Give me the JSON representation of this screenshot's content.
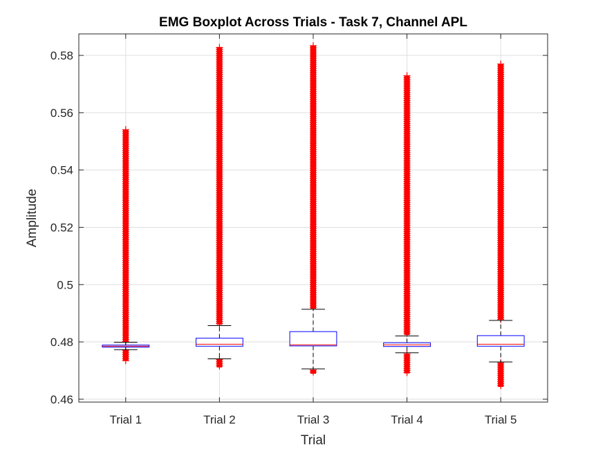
{
  "chart_data": {
    "type": "box",
    "title": "EMG Boxplot Across Trials - Task 7, Channel APL",
    "xlabel": "Trial",
    "ylabel": "Amplitude",
    "ylim": [
      0.459,
      0.5875
    ],
    "yticks": [
      "0.46",
      "0.48",
      "0.5",
      "0.52",
      "0.54",
      "0.56",
      "0.58"
    ],
    "ytick_values": [
      0.46,
      0.48,
      0.5,
      0.52,
      0.54,
      0.56,
      0.58
    ],
    "grid": true,
    "categories": [
      "Trial 1",
      "Trial 2",
      "Trial 3",
      "Trial 4",
      "Trial 5"
    ],
    "boxes": [
      {
        "name": "Trial 1",
        "whisker_low": 0.4773,
        "q1": 0.4782,
        "median": 0.4785,
        "q3": 0.4789,
        "whisker_high": 0.4799,
        "outlier_low": [
          0.4734,
          0.4771
        ],
        "outlier_high": [
          0.4801,
          0.5541
        ]
      },
      {
        "name": "Trial 2",
        "whisker_low": 0.4741,
        "q1": 0.4785,
        "median": 0.4792,
        "q3": 0.4813,
        "whisker_high": 0.4857,
        "outlier_low": [
          0.4711,
          0.4738
        ],
        "outlier_high": [
          0.486,
          0.5828
        ]
      },
      {
        "name": "Trial 3",
        "whisker_low": 0.4706,
        "q1": 0.4786,
        "median": 0.479,
        "q3": 0.4836,
        "whisker_high": 0.4914,
        "outlier_low": [
          0.4689,
          0.4702
        ],
        "outlier_high": [
          0.4916,
          0.5834
        ]
      },
      {
        "name": "Trial 4",
        "whisker_low": 0.4762,
        "q1": 0.4784,
        "median": 0.479,
        "q3": 0.4797,
        "whisker_high": 0.4821,
        "outlier_low": [
          0.469,
          0.4758
        ],
        "outlier_high": [
          0.4824,
          0.5729
        ]
      },
      {
        "name": "Trial 5",
        "whisker_low": 0.473,
        "q1": 0.4785,
        "median": 0.4792,
        "q3": 0.4822,
        "whisker_high": 0.4875,
        "outlier_low": [
          0.4643,
          0.4727
        ],
        "outlier_high": [
          0.4878,
          0.577
        ]
      }
    ],
    "colors": {
      "box": "#0000ff",
      "median": "#ff0000",
      "whisker": "#000000",
      "outlier": "#ff0000",
      "grid": "#dfdfdf",
      "axis": "#262626"
    }
  }
}
